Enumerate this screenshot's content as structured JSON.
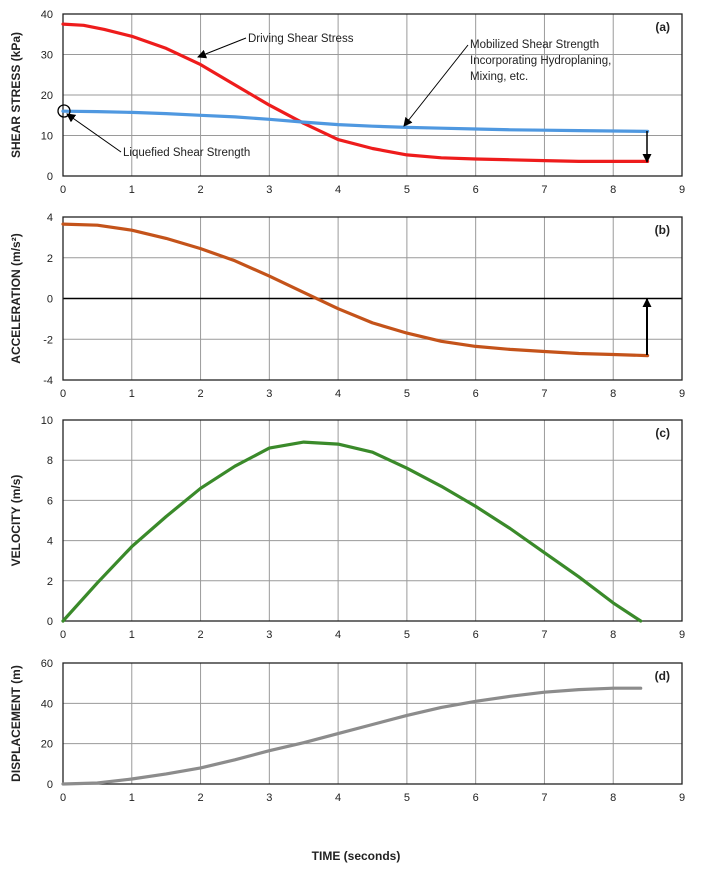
{
  "xlabel": "TIME (seconds)",
  "annotations": {
    "driving": "Driving Shear Stress",
    "mobilized": [
      "Mobilized Shear Strength",
      "Incorporating Hydroplaning,",
      "Mixing, etc."
    ],
    "liquefied": "Liquefied Shear Strength"
  },
  "colors": {
    "driving": "#ee1c1c",
    "mobilized": "#4f98e0",
    "acceleration": "#c4531a",
    "velocity": "#3a8a2a",
    "displacement": "#8c8c8c",
    "grid": "#9a9a9a",
    "frame": "#222222"
  },
  "chart_data": [
    {
      "type": "line",
      "panel_label": "(a)",
      "ylabel": "SHEAR STRESS (kPa)",
      "xlim": [
        0,
        9
      ],
      "ylim": [
        0,
        40
      ],
      "xticks": [
        0,
        1,
        2,
        3,
        4,
        5,
        6,
        7,
        8,
        9
      ],
      "yticks": [
        0,
        10,
        20,
        30,
        40
      ],
      "grid": true,
      "series": [
        {
          "name": "Driving Shear Stress",
          "x": [
            0,
            0.3,
            0.6,
            1.0,
            1.5,
            2.0,
            2.5,
            3.0,
            3.5,
            4.0,
            4.5,
            5.0,
            5.5,
            6.0,
            6.5,
            7.0,
            7.5,
            8.0,
            8.5
          ],
          "y": [
            37.5,
            37.2,
            36.2,
            34.5,
            31.5,
            27.5,
            22.5,
            17.5,
            13.0,
            9.0,
            6.8,
            5.2,
            4.5,
            4.2,
            4.0,
            3.8,
            3.6,
            3.6,
            3.6
          ]
        },
        {
          "name": "Mobilized Shear Strength Incorporating Hydroplaning, Mixing, etc.",
          "x": [
            0,
            0.5,
            1.0,
            1.5,
            2.0,
            2.5,
            3.0,
            3.5,
            4.0,
            4.5,
            5.0,
            5.5,
            6.0,
            6.5,
            7.0,
            7.5,
            8.0,
            8.5
          ],
          "y": [
            16.0,
            15.9,
            15.7,
            15.4,
            15.0,
            14.6,
            14.0,
            13.3,
            12.7,
            12.3,
            12.0,
            11.8,
            11.6,
            11.4,
            11.3,
            11.2,
            11.1,
            11.0
          ]
        }
      ]
    },
    {
      "type": "line",
      "panel_label": "(b)",
      "ylabel": "ACCELERATION (m/s²)",
      "xlim": [
        0,
        9
      ],
      "ylim": [
        -4,
        4
      ],
      "xticks": [
        0,
        1,
        2,
        3,
        4,
        5,
        6,
        7,
        8,
        9
      ],
      "yticks": [
        -4,
        -2,
        0,
        2,
        4
      ],
      "grid": true,
      "series": [
        {
          "x": [
            0,
            0.5,
            1.0,
            1.5,
            2.0,
            2.5,
            3.0,
            3.5,
            4.0,
            4.5,
            5.0,
            5.5,
            6.0,
            6.5,
            7.0,
            7.5,
            8.0,
            8.5
          ],
          "y": [
            3.65,
            3.6,
            3.35,
            2.95,
            2.45,
            1.85,
            1.1,
            0.3,
            -0.5,
            -1.2,
            -1.7,
            -2.1,
            -2.35,
            -2.5,
            -2.6,
            -2.7,
            -2.75,
            -2.8
          ]
        }
      ]
    },
    {
      "type": "line",
      "panel_label": "(c)",
      "ylabel": "VELOCITY (m/s)",
      "xlim": [
        0,
        9
      ],
      "ylim": [
        0,
        10
      ],
      "xticks": [
        0,
        1,
        2,
        3,
        4,
        5,
        6,
        7,
        8,
        9
      ],
      "yticks": [
        0,
        2,
        4,
        6,
        8,
        10
      ],
      "grid": true,
      "series": [
        {
          "x": [
            0,
            0.5,
            1.0,
            1.5,
            2.0,
            2.5,
            3.0,
            3.5,
            4.0,
            4.5,
            5.0,
            5.5,
            6.0,
            6.5,
            7.0,
            7.5,
            8.0,
            8.4
          ],
          "y": [
            0,
            1.9,
            3.7,
            5.2,
            6.6,
            7.7,
            8.6,
            8.9,
            8.8,
            8.4,
            7.6,
            6.7,
            5.7,
            4.6,
            3.4,
            2.2,
            0.9,
            0.0
          ]
        }
      ]
    },
    {
      "type": "line",
      "panel_label": "(d)",
      "ylabel": "DISPLACEMENT (m)",
      "xlim": [
        0,
        9
      ],
      "ylim": [
        0,
        60
      ],
      "xticks": [
        0,
        1,
        2,
        3,
        4,
        5,
        6,
        7,
        8,
        9
      ],
      "yticks": [
        0,
        20,
        40,
        60
      ],
      "grid": true,
      "series": [
        {
          "x": [
            0,
            0.5,
            1.0,
            1.5,
            2.0,
            2.5,
            3.0,
            3.5,
            4.0,
            4.5,
            5.0,
            5.5,
            6.0,
            6.5,
            7.0,
            7.5,
            8.0,
            8.4
          ],
          "y": [
            0,
            0.5,
            2.5,
            5.0,
            8.0,
            12.0,
            16.5,
            20.5,
            25.0,
            29.5,
            34.0,
            38.0,
            41.0,
            43.5,
            45.5,
            46.8,
            47.5,
            47.5
          ]
        }
      ]
    }
  ]
}
